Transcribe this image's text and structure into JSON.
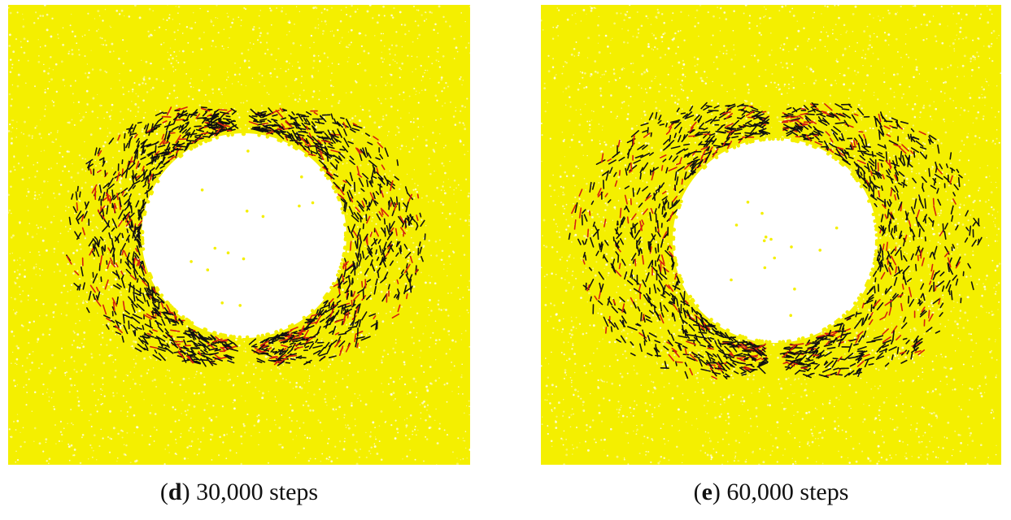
{
  "panels": [
    {
      "letter": "d",
      "label": "30,000 steps",
      "background_color": "#f4ef00",
      "crack_colors": [
        "#111111",
        "#d42010"
      ]
    },
    {
      "letter": "e",
      "label": "60,000 steps",
      "background_color": "#f4ef00",
      "crack_colors": [
        "#111111",
        "#d42010"
      ]
    }
  ]
}
